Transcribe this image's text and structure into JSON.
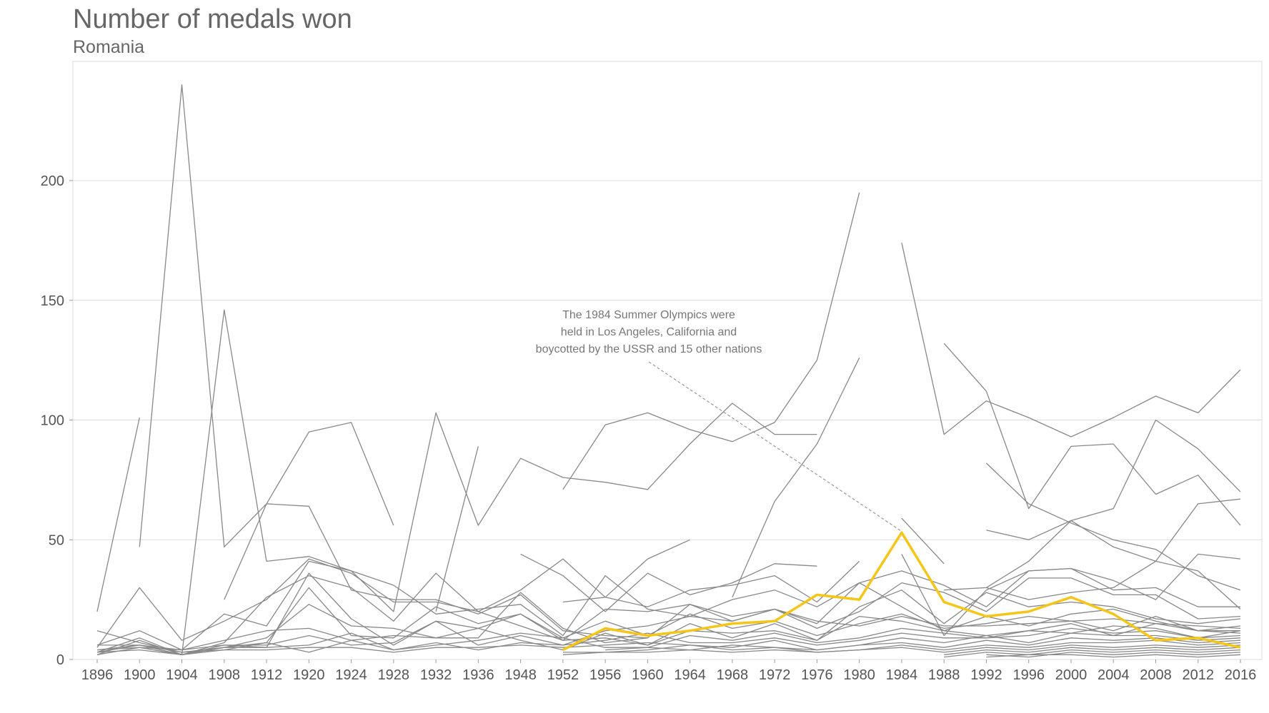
{
  "chart_data": {
    "type": "line",
    "title": "Number of medals won",
    "subtitle": "Romania",
    "xlabel": "",
    "ylabel": "",
    "x": [
      "1896",
      "1900",
      "1904",
      "1908",
      "1912",
      "1920",
      "1924",
      "1928",
      "1932",
      "1936",
      "1948",
      "1952",
      "1956",
      "1960",
      "1964",
      "1968",
      "1972",
      "1976",
      "1980",
      "1984",
      "1988",
      "1992",
      "1996",
      "2000",
      "2004",
      "2008",
      "2012",
      "2016"
    ],
    "yticks": [
      0,
      50,
      100,
      150,
      200
    ],
    "ylim": [
      0,
      250
    ],
    "grid": "horizontal",
    "highlight_color": "#f5c518",
    "background_line_color": "#888888",
    "highlight": {
      "name": "Romania",
      "values": [
        null,
        null,
        null,
        null,
        null,
        null,
        null,
        null,
        null,
        null,
        null,
        4,
        13,
        10,
        12,
        15,
        16,
        27,
        25,
        53,
        24,
        18,
        20,
        26,
        19,
        8,
        9,
        5
      ]
    },
    "background_series": [
      [
        20,
        101
      ],
      [
        null,
        47,
        240,
        47,
        65,
        64,
        29,
        25,
        25,
        19,
        27,
        12,
        10,
        9,
        null,
        null,
        null,
        null,
        null,
        null,
        null,
        null,
        null,
        null,
        null,
        null,
        null,
        null
      ],
      [
        null,
        null,
        2,
        146,
        41,
        43,
        37,
        20,
        103,
        56,
        84,
        76,
        74,
        71,
        90,
        107,
        94,
        94
      ],
      [
        null,
        null,
        null,
        25,
        65,
        95,
        99,
        56,
        null,
        null,
        null,
        null,
        null,
        null,
        null,
        null,
        null,
        null,
        null,
        null,
        null,
        null,
        null,
        null,
        null,
        null,
        null,
        null
      ],
      [
        null,
        null,
        null,
        null,
        null,
        null,
        null,
        null,
        20,
        89
      ],
      [
        null,
        null,
        null,
        null,
        null,
        null,
        null,
        null,
        null,
        null,
        null,
        71,
        98,
        103,
        96,
        91,
        99,
        125,
        195
      ],
      [
        null,
        null,
        null,
        null,
        null,
        null,
        null,
        null,
        null,
        null,
        null,
        null,
        null,
        null,
        null,
        26,
        66,
        90,
        126
      ],
      [
        null,
        null,
        null,
        null,
        null,
        null,
        null,
        null,
        null,
        null,
        null,
        null,
        null,
        null,
        null,
        null,
        null,
        null,
        null,
        174,
        94,
        108,
        101,
        93,
        101,
        110,
        103,
        121
      ],
      [
        null,
        null,
        null,
        null,
        null,
        null,
        null,
        null,
        null,
        null,
        null,
        null,
        null,
        null,
        null,
        null,
        null,
        null,
        null,
        null,
        132,
        112,
        63,
        89,
        90,
        69,
        77,
        56
      ],
      [
        null,
        null,
        null,
        null,
        null,
        null,
        null,
        null,
        null,
        null,
        null,
        null,
        null,
        null,
        null,
        null,
        null,
        null,
        null,
        null,
        null,
        82,
        65,
        57,
        50,
        46,
        35,
        29
      ],
      [
        null,
        null,
        null,
        null,
        null,
        null,
        null,
        null,
        null,
        null,
        null,
        null,
        null,
        null,
        null,
        null,
        null,
        null,
        null,
        null,
        29,
        30,
        41,
        58,
        63,
        100,
        88,
        70
      ],
      [
        null,
        null,
        null,
        null,
        null,
        null,
        null,
        null,
        null,
        null,
        null,
        null,
        null,
        null,
        null,
        null,
        null,
        null,
        null,
        null,
        null,
        54,
        50,
        58,
        47,
        41,
        65,
        67
      ],
      [
        null,
        null,
        null,
        null,
        null,
        null,
        null,
        null,
        null,
        null,
        null,
        null,
        null,
        null,
        null,
        null,
        null,
        null,
        null,
        59,
        40
      ],
      [
        null,
        null,
        null,
        null,
        null,
        null,
        null,
        null,
        null,
        null,
        null,
        null,
        null,
        null,
        null,
        null,
        null,
        null,
        null,
        44,
        10,
        29,
        37,
        38,
        33,
        25,
        44,
        42
      ],
      [
        null,
        null,
        null,
        null,
        null,
        null,
        null,
        null,
        null,
        null,
        null,
        null,
        null,
        null,
        null,
        null,
        null,
        null,
        null,
        null,
        null,
        30,
        25,
        28,
        30,
        41,
        37,
        21
      ],
      [
        null,
        null,
        null,
        null,
        null,
        null,
        null,
        null,
        null,
        null,
        null,
        24,
        26,
        42,
        50
      ],
      [
        null,
        null,
        null,
        null,
        null,
        null,
        null,
        null,
        null,
        null,
        44,
        35,
        20,
        36,
        27,
        32,
        40,
        39
      ],
      [
        5,
        30,
        8,
        16,
        25,
        42,
        36,
        24,
        24,
        20,
        29,
        42,
        26,
        22,
        29,
        31,
        35,
        24,
        41
      ],
      [
        6,
        12,
        4,
        19,
        14,
        41,
        37,
        31,
        19,
        21,
        23,
        10,
        35,
        21,
        18,
        25,
        29,
        22,
        32,
        37,
        31,
        22,
        37,
        38,
        29,
        30,
        22,
        22
      ],
      [
        3,
        9,
        2,
        7,
        26,
        35,
        30,
        16,
        36,
        20,
        14,
        8,
        21,
        20,
        23,
        18,
        21,
        13,
        20,
        32,
        28,
        20,
        34,
        34,
        27,
        27,
        17,
        18
      ],
      [
        2,
        8,
        2,
        5,
        7,
        30,
        10,
        9,
        22,
        15,
        19,
        8,
        9,
        6,
        15,
        9,
        15,
        8,
        22,
        29,
        15,
        28,
        22,
        24,
        22,
        17,
        15,
        17
      ],
      [
        12,
        7,
        3,
        5,
        9,
        23,
        14,
        13,
        9,
        9,
        28,
        13,
        7,
        9,
        23,
        16,
        21,
        15,
        32,
        22,
        12,
        18,
        14,
        19,
        21,
        16,
        12,
        14
      ],
      [
        4,
        5,
        2,
        5,
        5,
        36,
        17,
        6,
        16,
        13,
        19,
        9,
        16,
        10,
        19,
        13,
        16,
        10,
        15,
        19,
        13,
        15,
        18,
        16,
        17,
        15,
        12,
        11
      ],
      [
        4,
        6,
        2,
        6,
        6,
        10,
        6,
        7,
        16,
        6,
        10,
        6,
        12,
        14,
        18,
        16,
        21,
        16,
        14,
        18,
        14,
        14,
        15,
        16,
        12,
        18,
        12,
        12
      ],
      [
        6,
        6,
        4,
        8,
        12,
        13,
        8,
        10,
        9,
        13,
        8,
        4,
        11,
        6,
        12,
        11,
        12,
        8,
        18,
        16,
        12,
        10,
        12,
        15,
        10,
        15,
        14,
        13
      ],
      [
        2,
        5,
        4,
        6,
        5,
        6,
        11,
        4,
        6,
        8,
        11,
        9,
        5,
        5,
        10,
        8,
        11,
        7,
        9,
        13,
        11,
        9,
        12,
        11,
        14,
        13,
        9,
        12
      ],
      [
        3,
        6,
        3,
        4,
        7,
        3,
        8,
        4,
        7,
        4,
        7,
        6,
        8,
        11,
        7,
        7,
        9,
        6,
        8,
        11,
        9,
        9,
        10,
        13,
        11,
        12,
        9,
        10
      ],
      [
        3,
        4,
        2,
        4,
        4,
        5,
        5,
        3,
        5,
        5,
        6,
        5,
        6,
        7,
        6,
        5,
        8,
        4,
        6,
        9,
        7,
        10,
        7,
        11,
        10,
        10,
        8,
        9
      ],
      [
        null,
        null,
        null,
        null,
        null,
        null,
        null,
        null,
        null,
        null,
        null,
        null,
        4,
        5,
        4,
        6,
        5,
        4,
        6,
        7,
        5,
        8,
        6,
        9,
        8,
        9,
        7,
        8
      ],
      [
        null,
        null,
        null,
        null,
        null,
        null,
        null,
        null,
        null,
        null,
        null,
        3,
        3,
        4,
        6,
        4,
        5,
        3,
        4,
        6,
        4,
        6,
        5,
        7,
        7,
        8,
        6,
        7
      ],
      [
        null,
        null,
        null,
        null,
        null,
        null,
        null,
        null,
        null,
        null,
        null,
        2,
        3,
        3,
        4,
        3,
        4,
        3,
        4,
        5,
        3,
        5,
        4,
        6,
        5,
        6,
        5,
        6
      ],
      [
        null,
        null,
        null,
        null,
        null,
        null,
        null,
        null,
        null,
        null,
        null,
        null,
        null,
        null,
        null,
        null,
        null,
        null,
        null,
        null,
        2,
        4,
        3,
        5,
        4,
        5,
        4,
        5
      ],
      [
        null,
        null,
        null,
        null,
        null,
        null,
        null,
        null,
        null,
        null,
        null,
        null,
        null,
        null,
        null,
        null,
        null,
        null,
        null,
        null,
        1,
        3,
        2,
        4,
        3,
        4,
        3,
        4
      ],
      [
        null,
        null,
        null,
        null,
        null,
        null,
        null,
        null,
        null,
        null,
        null,
        null,
        null,
        null,
        null,
        null,
        null,
        null,
        null,
        null,
        null,
        2,
        1,
        3,
        2,
        3,
        2,
        3
      ],
      [
        null,
        null,
        null,
        null,
        null,
        null,
        null,
        null,
        null,
        null,
        null,
        null,
        null,
        null,
        null,
        null,
        null,
        null,
        null,
        null,
        null,
        1,
        2,
        2,
        1,
        2,
        1,
        2
      ]
    ],
    "annotation": {
      "lines": [
        "The 1984 Summer Olympics were",
        "held in Los Angeles, California and",
        "boycotted by the USSR and 15 other nations"
      ],
      "anchor_x": "1984",
      "anchor_y": 53
    }
  }
}
